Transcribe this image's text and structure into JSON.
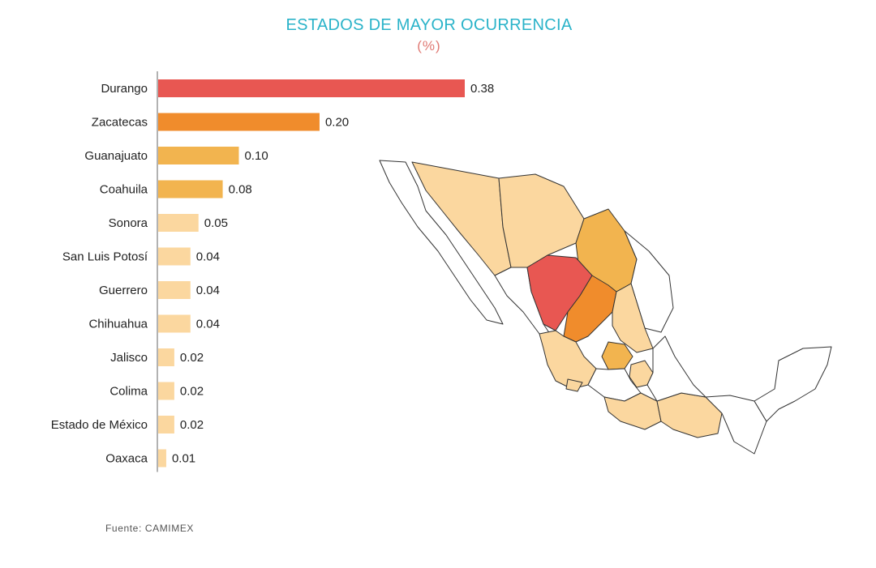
{
  "title": "ESTADOS DE MAYOR OCURRENCIA",
  "subtitle": "(%)",
  "source": "Fuente: CAMIMEX",
  "chart_data": {
    "type": "bar",
    "orientation": "horizontal",
    "title": "ESTADOS DE MAYOR OCURRENCIA",
    "subtitle": "(%)",
    "categories": [
      "Durango",
      "Zacatecas",
      "Guanajuato",
      "Coahuila",
      "Sonora",
      "San Luis Potosí",
      "Guerrero",
      "Chihuahua",
      "Jalisco",
      "Colima",
      "Estado de México",
      "Oaxaca"
    ],
    "values": [
      0.38,
      0.2,
      0.1,
      0.08,
      0.05,
      0.04,
      0.04,
      0.04,
      0.02,
      0.02,
      0.02,
      0.01
    ],
    "value_labels": [
      "0.38",
      "0.20",
      "0.10",
      "0.08",
      "0.05",
      "0.04",
      "0.04",
      "0.04",
      "0.02",
      "0.02",
      "0.02",
      "0.01"
    ],
    "xlim": [
      0,
      0.38
    ],
    "grid": false,
    "legend": "none"
  },
  "colors": {
    "highest": "#e85752",
    "high": "#f08c2c",
    "medium": "#f2b44f",
    "low": "#fbd79f",
    "title": "#2ab3c9",
    "subtitle": "#e07a74"
  },
  "map": {
    "icon": "mexico-map-icon"
  }
}
